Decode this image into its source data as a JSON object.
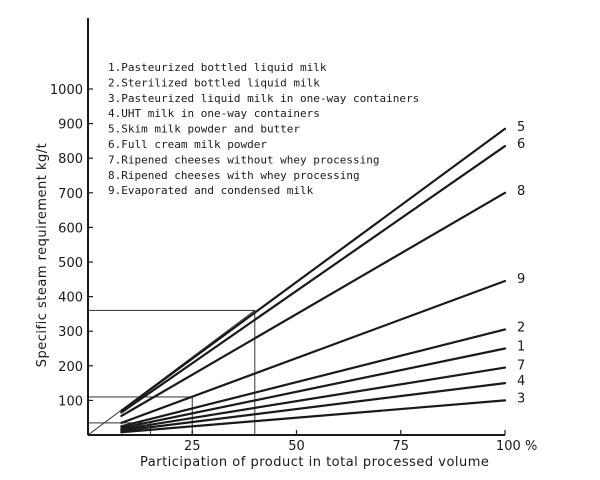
{
  "chart_data": {
    "type": "line",
    "xlabel": "Participation  of product in total processed volume",
    "ylabel": "Specific  steam  requirement  kg/t",
    "xlim": [
      0,
      100
    ],
    "ylim": [
      0,
      1000
    ],
    "x_ticks": [
      {
        "value": 25,
        "label": "25"
      },
      {
        "value": 50,
        "label": "50"
      },
      {
        "value": 75,
        "label": "75"
      },
      {
        "value": 100,
        "label": "100 %"
      }
    ],
    "y_ticks": [
      {
        "value": 100,
        "label": "100"
      },
      {
        "value": 200,
        "label": "200"
      },
      {
        "value": 300,
        "label": "300"
      },
      {
        "value": 400,
        "label": "400"
      },
      {
        "value": 500,
        "label": "500"
      },
      {
        "value": 600,
        "label": "600"
      },
      {
        "value": 700,
        "label": "700"
      },
      {
        "value": 800,
        "label": "800"
      },
      {
        "value": 900,
        "label": "900"
      },
      {
        "value": 1000,
        "label": "1000"
      }
    ],
    "grid": false,
    "legend_position": "top-left",
    "legend": [
      "1.Pasteurized bottled liquid milk",
      "2.Sterilized bottled liquid milk",
      "3.Pasteurized liquid milk in one-way containers",
      "4.UHT milk in one-way containers",
      "5.Skim milk powder and butter",
      "6.Full cream milk powder",
      "7.Ripened cheeses without whey processing",
      "8.Ripened cheeses with whey processing",
      "9.Evaporated and condensed milk"
    ],
    "series": [
      {
        "name": "1",
        "x": [
          8,
          100
        ],
        "y": [
          20,
          250
        ]
      },
      {
        "name": "2",
        "x": [
          8,
          100
        ],
        "y": [
          25,
          305
        ]
      },
      {
        "name": "3",
        "x": [
          8,
          100
        ],
        "y": [
          8,
          100
        ]
      },
      {
        "name": "4",
        "x": [
          8,
          100
        ],
        "y": [
          12,
          150
        ]
      },
      {
        "name": "5",
        "x": [
          8,
          100
        ],
        "y": [
          70,
          885
        ]
      },
      {
        "name": "6",
        "x": [
          8,
          100
        ],
        "y": [
          65,
          835
        ]
      },
      {
        "name": "7",
        "x": [
          8,
          100
        ],
        "y": [
          16,
          195
        ]
      },
      {
        "name": "8",
        "x": [
          8,
          100
        ],
        "y": [
          55,
          700
        ]
      },
      {
        "name": "9",
        "x": [
          8,
          100
        ],
        "y": [
          35,
          445
        ]
      }
    ],
    "annotations": [
      {
        "type": "box",
        "x": [
          0,
          40
        ],
        "y": [
          0,
          360
        ]
      },
      {
        "type": "box",
        "x": [
          0,
          25
        ],
        "y": [
          0,
          110
        ]
      },
      {
        "type": "box",
        "x": [
          0,
          15
        ],
        "y": [
          0,
          35
        ]
      },
      {
        "type": "line",
        "x": [
          0,
          40
        ],
        "y": [
          0,
          360
        ]
      }
    ]
  }
}
